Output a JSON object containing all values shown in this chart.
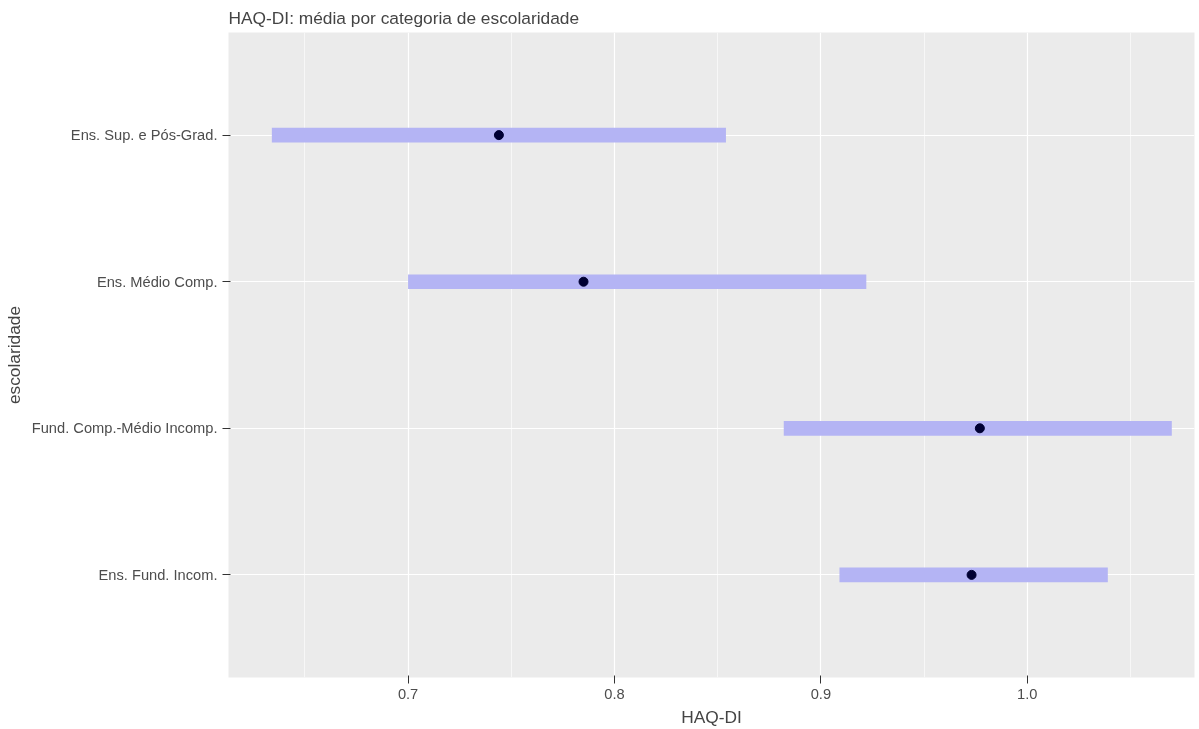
{
  "chart_data": {
    "type": "bar",
    "orientation": "horizontal",
    "title": "HAQ-DI: média por categoria de escolaridade",
    "xlabel": "HAQ-DI",
    "ylabel": "escolaridade",
    "categories": [
      "Ens. Sup. e Pós-Grad.",
      "Ens. Médio Comp.",
      "Fund. Comp.-Médio Incomp.",
      "Ens. Fund. Incom."
    ],
    "series": [
      {
        "color": "#b4b4f4",
        "base": [
          0.634,
          0.7,
          0.882,
          0.909
        ],
        "values": [
          0.22,
          0.222,
          0.188,
          0.13
        ]
      },
      {
        "type": "scatter",
        "color": "#000033",
        "x": [
          "Ens. Sup. e Pós-Grad.",
          "Ens. Médio Comp.",
          "Fund. Comp.-Médio Incomp.",
          "Ens. Fund. Incom."
        ],
        "values": [
          0.744,
          0.785,
          0.977,
          0.973
        ]
      }
    ],
    "xlim": [
      0.613,
      1.081
    ],
    "xticks": [
      0.7,
      0.8,
      0.9,
      {
        "value": 1.0,
        "label": "1.0"
      }
    ],
    "grid": true,
    "marker": "circle"
  }
}
